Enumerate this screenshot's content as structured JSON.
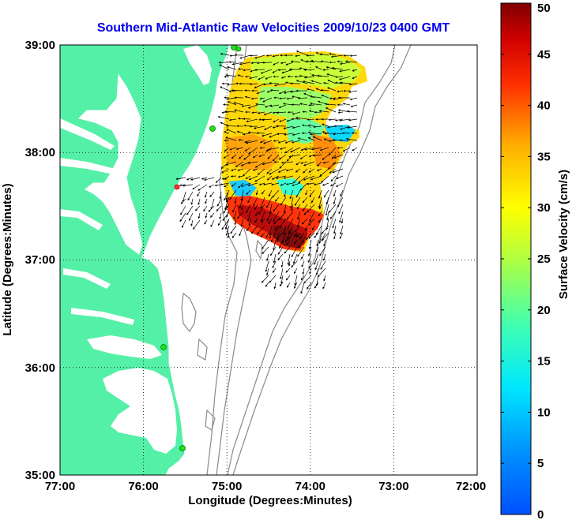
{
  "title": "Southern Mid-Atlantic Raw Velocities 2009/10/23 0400 GMT",
  "xlabel": "Longitude (Degrees:Minutes)",
  "ylabel": "Latitude (Degrees:Minutes)",
  "x_ticks": [
    "77:00",
    "76:00",
    "75:00",
    "74:00",
    "73:00",
    "72:00"
  ],
  "y_ticks": [
    "39:00",
    "38:00",
    "37:00",
    "36:00",
    "35:00"
  ],
  "colorbar": {
    "label": "Surface Velocity (cm/s)",
    "min": 0,
    "max": 50,
    "ticks": [
      "0",
      "5",
      "10",
      "15",
      "20",
      "25",
      "30",
      "35",
      "40",
      "45",
      "50"
    ]
  },
  "colors": {
    "land": "#55f0a8",
    "land_outline": "#ffffff",
    "grid": "#000000",
    "title": "#0000ee",
    "bathymetry": "#8a8a8a",
    "station": "#1ee01e"
  }
}
